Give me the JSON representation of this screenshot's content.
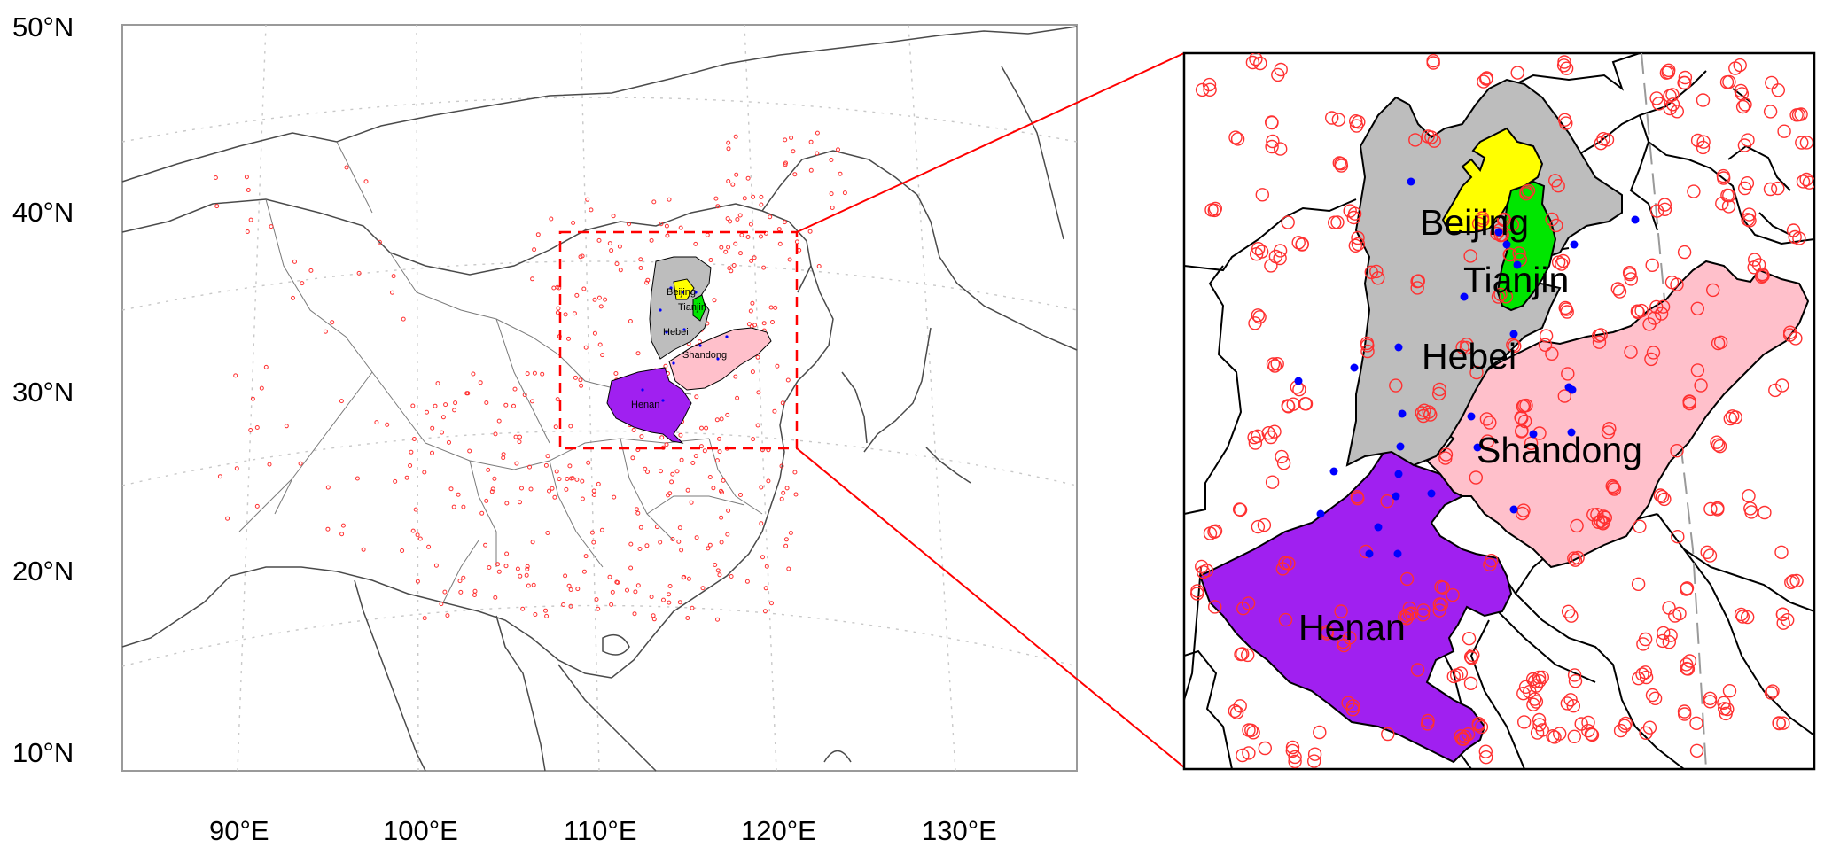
{
  "main_map": {
    "lat_labels": [
      "50°N",
      "40°N",
      "30°N",
      "20°N",
      "10°N"
    ],
    "lon_labels": [
      "90°E",
      "100°E",
      "110°E",
      "120°E",
      "130°E"
    ]
  },
  "provinces": [
    {
      "key": "beijing",
      "name": "Beijing",
      "color": "#ffff00"
    },
    {
      "key": "tianjin",
      "name": "Tianjin",
      "color": "#00e600"
    },
    {
      "key": "hebei",
      "name": "Hebei",
      "color": "#bdbdbd"
    },
    {
      "key": "shandong",
      "name": "Shandong",
      "color": "#ffc0cb"
    },
    {
      "key": "henan",
      "name": "Henan",
      "color": "#a020f0"
    }
  ],
  "colors": {
    "station_outside": "#ff3030",
    "station_inside": "#0000ff",
    "inset_box": "#ff0000",
    "connector": "#ff0000",
    "coast": "#333333"
  },
  "station_markers": {
    "outside": "red-open-circle",
    "inside": "blue-filled-dot"
  }
}
